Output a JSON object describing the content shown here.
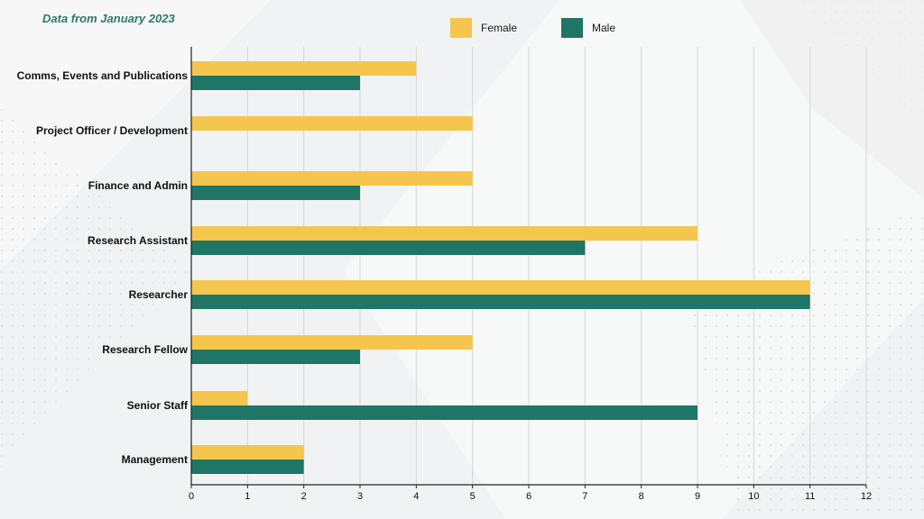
{
  "subtitle": "Data from January 2023",
  "colors": {
    "female": "#f5c64e",
    "male": "#1f7566",
    "grid": "#d6d6d6",
    "axis": "#222222"
  },
  "chart_data": {
    "type": "bar",
    "orientation": "horizontal",
    "categories": [
      "Comms, Events and Publications",
      "Project Officer / Development",
      "Finance and Admin",
      "Research Assistant",
      "Researcher",
      "Research Fellow",
      "Senior Staff",
      "Management"
    ],
    "series": [
      {
        "name": "Female",
        "values": [
          4,
          5,
          5,
          9,
          11,
          5,
          1,
          2
        ]
      },
      {
        "name": "Male",
        "values": [
          3,
          0,
          3,
          7,
          11,
          3,
          9,
          2
        ]
      }
    ],
    "xlim": [
      0,
      12
    ],
    "xticks": [
      "0",
      "1",
      "2",
      "3",
      "4",
      "5",
      "6",
      "7",
      "8",
      "9",
      "10",
      "11",
      "12"
    ],
    "grid": true,
    "legend_position": "top-right"
  }
}
